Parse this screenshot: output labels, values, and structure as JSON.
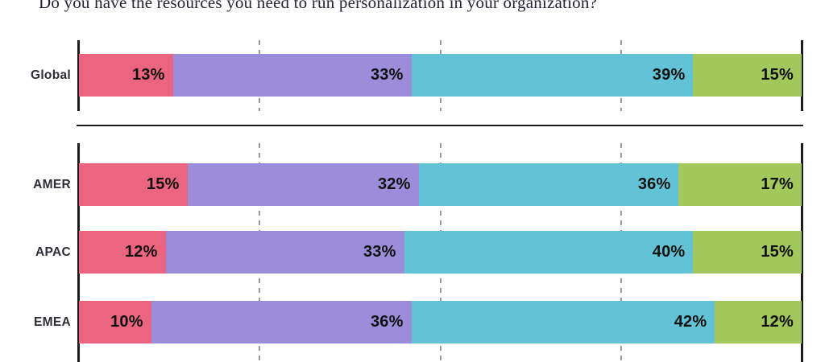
{
  "title": "Do you have the resources you need to run personalization in your organization?",
  "colors": {
    "pink": "#EC6580",
    "purple": "#9B8DD9",
    "teal": "#63C3D6",
    "green": "#A2C85C",
    "axis": "#1B1B1B",
    "gridline": "#9A9A9A",
    "category_text": "#2D2D36",
    "value_text": "#101010",
    "title_text": "#232330",
    "background": "#FFFFFF"
  },
  "chart_data": {
    "type": "bar",
    "orientation": "horizontal",
    "stacked": true,
    "unit": "percent",
    "title": "Do you have the resources you need to run personalization in your organization?",
    "categories": [
      "Global",
      "AMER",
      "APAC",
      "EMEA"
    ],
    "series": [
      {
        "name": "pink-segment",
        "color": "#EC6580",
        "values": [
          13,
          15,
          12,
          10
        ]
      },
      {
        "name": "purple-segment",
        "color": "#9B8DD9",
        "values": [
          33,
          32,
          33,
          36
        ]
      },
      {
        "name": "teal-segment",
        "color": "#63C3D6",
        "values": [
          39,
          36,
          40,
          42
        ]
      },
      {
        "name": "green-segment",
        "color": "#A2C85C",
        "values": [
          15,
          17,
          15,
          12
        ]
      }
    ],
    "xlim": [
      0,
      100
    ],
    "gridlines_at_percent": [
      25,
      50,
      75
    ],
    "axis_lines_at_percent": [
      0,
      100
    ],
    "legend": false,
    "value_labels_position": "inside-right",
    "layout_note": "Global row separated from regional rows by horizontal rule"
  },
  "rows": [
    {
      "id": "global",
      "label": "Global",
      "segments": [
        {
          "series": "pink",
          "pct": 13,
          "text": "13%"
        },
        {
          "series": "purple",
          "pct": 33,
          "text": "33%"
        },
        {
          "series": "teal",
          "pct": 39,
          "text": "39%"
        },
        {
          "series": "green",
          "pct": 15,
          "text": "15%"
        }
      ]
    },
    {
      "id": "amer",
      "label": "AMER",
      "segments": [
        {
          "series": "pink",
          "pct": 15,
          "text": "15%"
        },
        {
          "series": "purple",
          "pct": 32,
          "text": "32%"
        },
        {
          "series": "teal",
          "pct": 36,
          "text": "36%"
        },
        {
          "series": "green",
          "pct": 17,
          "text": "17%"
        }
      ]
    },
    {
      "id": "apac",
      "label": "APAC",
      "segments": [
        {
          "series": "pink",
          "pct": 12,
          "text": "12%"
        },
        {
          "series": "purple",
          "pct": 33,
          "text": "33%"
        },
        {
          "series": "teal",
          "pct": 40,
          "text": "40%"
        },
        {
          "series": "green",
          "pct": 15,
          "text": "15%"
        }
      ]
    },
    {
      "id": "emea",
      "label": "EMEA",
      "segments": [
        {
          "series": "pink",
          "pct": 10,
          "text": "10%"
        },
        {
          "series": "purple",
          "pct": 36,
          "text": "36%"
        },
        {
          "series": "teal",
          "pct": 42,
          "text": "42%"
        },
        {
          "series": "green",
          "pct": 12,
          "text": "12%"
        }
      ]
    }
  ]
}
